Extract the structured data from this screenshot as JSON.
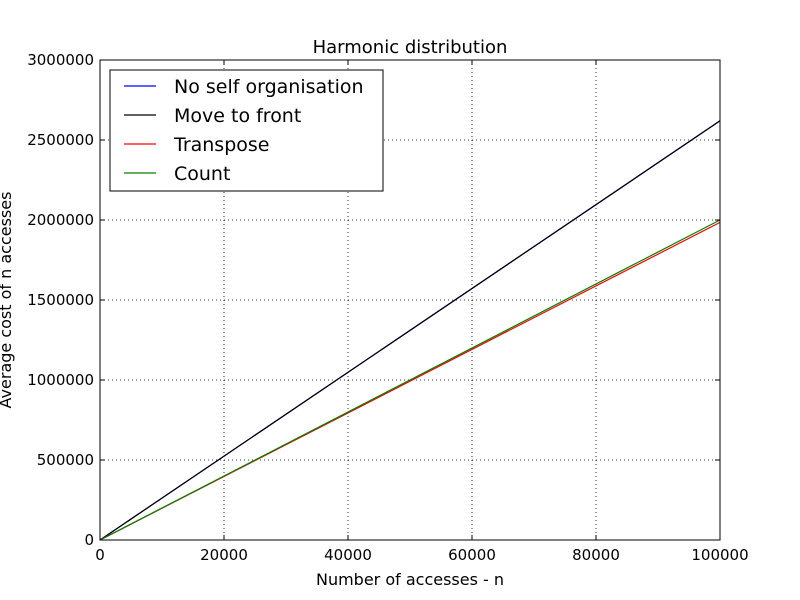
{
  "chart_data": {
    "type": "line",
    "title": "Harmonic distribution",
    "xlabel": "Number of accesses - n",
    "ylabel": "Average cost of n accesses",
    "xlim": [
      0,
      100000
    ],
    "ylim": [
      0,
      3000000
    ],
    "xticks": [
      0,
      20000,
      40000,
      60000,
      80000,
      100000
    ],
    "yticks": [
      0,
      500000,
      1000000,
      1500000,
      2000000,
      2500000,
      3000000
    ],
    "xtick_labels": [
      "0",
      "20000",
      "40000",
      "60000",
      "80000",
      "100000"
    ],
    "ytick_labels": [
      "0",
      "500000",
      "1000000",
      "1500000",
      "2000000",
      "2500000",
      "3000000"
    ],
    "grid": true,
    "legend_position": "top-left",
    "series": [
      {
        "name": "No self organisation",
        "color": "#0000ff",
        "x": [
          0,
          100000
        ],
        "y": [
          0,
          2620000
        ]
      },
      {
        "name": "Move to front",
        "color": "#000000",
        "x": [
          0,
          100000
        ],
        "y": [
          0,
          2620000
        ]
      },
      {
        "name": "Transpose",
        "color": "#ff0000",
        "x": [
          0,
          100000
        ],
        "y": [
          0,
          1985000
        ]
      },
      {
        "name": "Count",
        "color": "#008000",
        "x": [
          0,
          100000
        ],
        "y": [
          0,
          2000000
        ]
      }
    ]
  }
}
